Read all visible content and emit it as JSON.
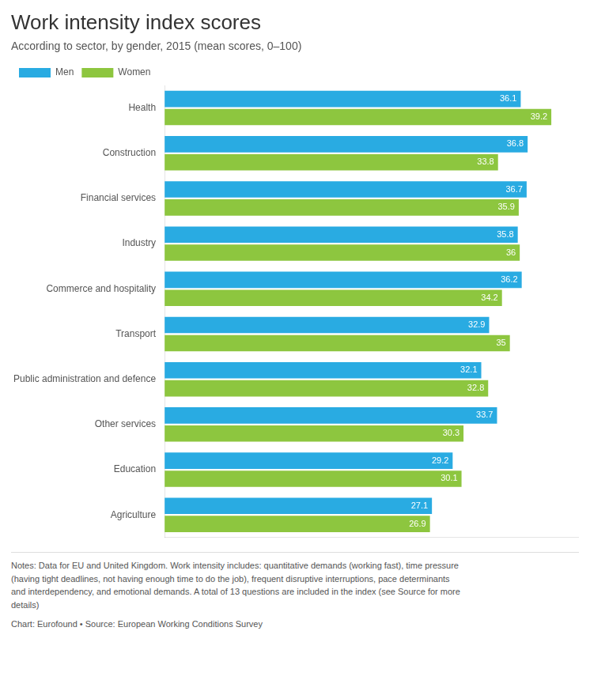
{
  "chart_data": {
    "type": "bar",
    "orientation": "horizontal",
    "title": "Work intensity index scores",
    "subtitle": "According to sector, by gender, 2015 (mean scores, 0–100)",
    "categories": [
      "Health",
      "Construction",
      "Financial services",
      "Industry",
      "Commerce and hospitality",
      "Transport",
      "Public administration and defence",
      "Other services",
      "Education",
      "Agriculture"
    ],
    "series": [
      {
        "name": "Men",
        "color": "#29ABE2",
        "values": [
          36.1,
          36.8,
          36.7,
          35.8,
          36.2,
          32.9,
          32.1,
          33.7,
          29.2,
          27.1
        ]
      },
      {
        "name": "Women",
        "color": "#8DC63F",
        "values": [
          39.2,
          33.8,
          35.9,
          36.0,
          34.2,
          35.0,
          32.8,
          30.3,
          30.1,
          26.9
        ]
      }
    ],
    "xlim": [
      0,
      42
    ],
    "grid": false,
    "legend": "top",
    "data_labels": true,
    "tick_labels": "y",
    "notes": "Notes: Data for EU and United Kingdom. Work intensity includes: quantitative demands (working fast), time pressure\n(having tight deadlines, not having enough time to do the job), frequent disruptive interruptions, pace determinants\nand interdependency, and emotional demands. A total of 13 questions are included in the index (see Source for more\ndetails)",
    "source": "Chart: Eurofound • Source: European Working Conditions Survey"
  }
}
